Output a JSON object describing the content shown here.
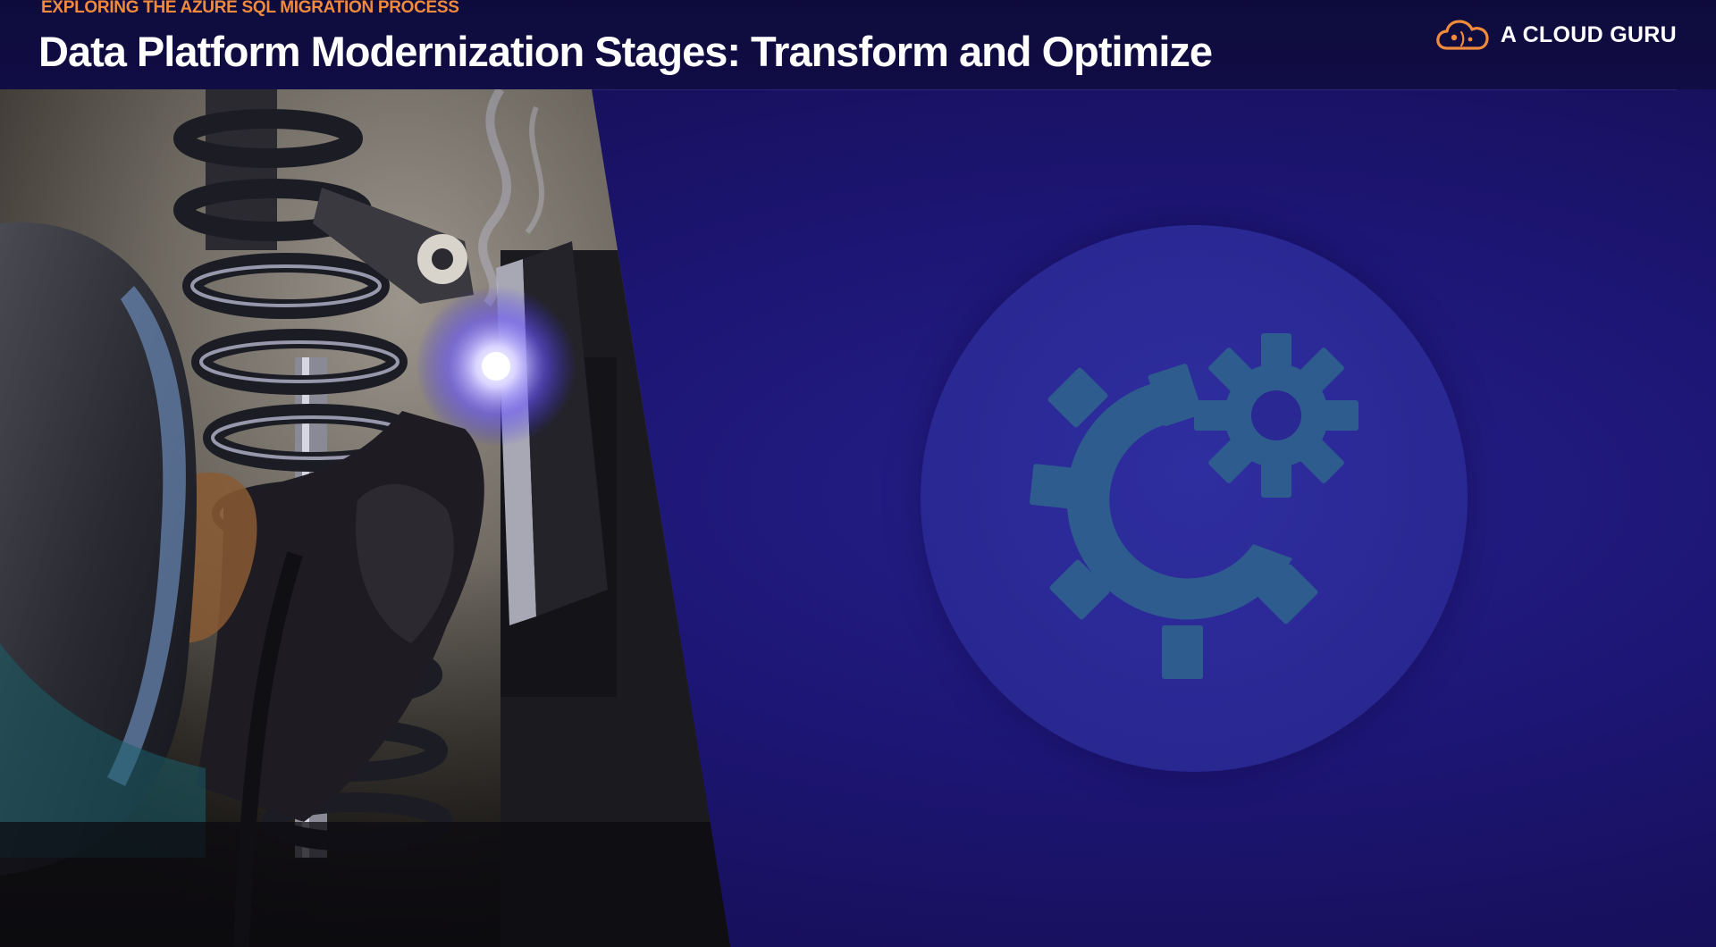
{
  "header": {
    "eyebrow": "EXPLORING THE AZURE SQL MIGRATION PROCESS",
    "title": "Data Platform Modernization Stages: Transform and Optimize"
  },
  "brand": {
    "name": "A CLOUD GURU",
    "icon": "cloud-logo-icon",
    "accent_color": "#f08a3c"
  },
  "hero_image": {
    "subject": "welder-photo"
  },
  "main_icon": {
    "icon": "gears-icon",
    "circle_color": "#2a2893",
    "icon_color": "#2e5c8f"
  },
  "colors": {
    "background": "#1a1466",
    "header": "#0f0c40",
    "eyebrow": "#f08a3c",
    "title": "#ffffff"
  }
}
